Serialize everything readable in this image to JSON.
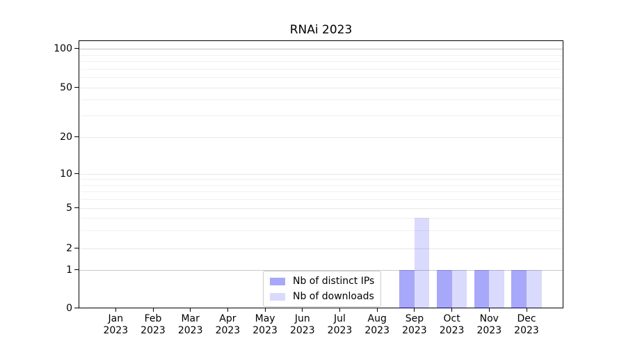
{
  "chart_data": {
    "type": "bar",
    "title": "RNAi 2023",
    "categories": [
      "Jan\n2023",
      "Feb\n2023",
      "Mar\n2023",
      "Apr\n2023",
      "May\n2023",
      "Jun\n2023",
      "Jul\n2023",
      "Aug\n2023",
      "Sep\n2023",
      "Oct\n2023",
      "Nov\n2023",
      "Dec\n2023"
    ],
    "series": [
      {
        "name": "Nb of distinct IPs",
        "color": "#0000f0",
        "opacity": 0.34,
        "displayed_color": "#a9a9f6",
        "values": [
          0,
          0,
          0,
          0,
          0,
          0,
          0,
          0,
          1,
          1,
          1,
          1
        ]
      },
      {
        "name": "Nb of downloads",
        "color": "#0000f0",
        "opacity": 0.145,
        "displayed_color": "#dadaf8",
        "values": [
          0,
          0,
          0,
          0,
          0,
          0,
          0,
          0,
          4,
          1,
          1,
          1
        ]
      }
    ],
    "yticks": [
      0,
      1,
      2,
      5,
      10,
      20,
      50,
      100
    ],
    "yscale": "symlog",
    "ylim": [
      0,
      116
    ],
    "xlabel": "",
    "ylabel": "",
    "grid": "both",
    "legend_position": "lower center, inside axes"
  }
}
